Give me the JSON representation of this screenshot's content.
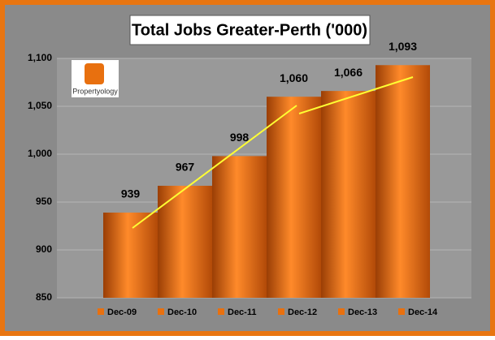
{
  "chart_data": {
    "type": "bar",
    "title": "Total Jobs Greater-Perth ('000)",
    "watermark": "Propertyology",
    "categories": [
      "Dec-09",
      "Dec-10",
      "Dec-11",
      "Dec-12",
      "Dec-13",
      "Dec-14"
    ],
    "values": [
      939,
      967,
      998,
      1060,
      1066,
      1093
    ],
    "value_labels": [
      "939",
      "967",
      "998",
      "1,060",
      "1,066",
      "1,093"
    ],
    "color": "#e8700f",
    "ylim": [
      850,
      1100
    ],
    "yticks": [
      850,
      900,
      950,
      {
        "value": 1000,
        "label": "1,000"
      },
      {
        "value": 1050,
        "label": "1,050"
      },
      {
        "value": 1100,
        "label": "1,100"
      }
    ],
    "grid": true,
    "legend": "bottom"
  }
}
